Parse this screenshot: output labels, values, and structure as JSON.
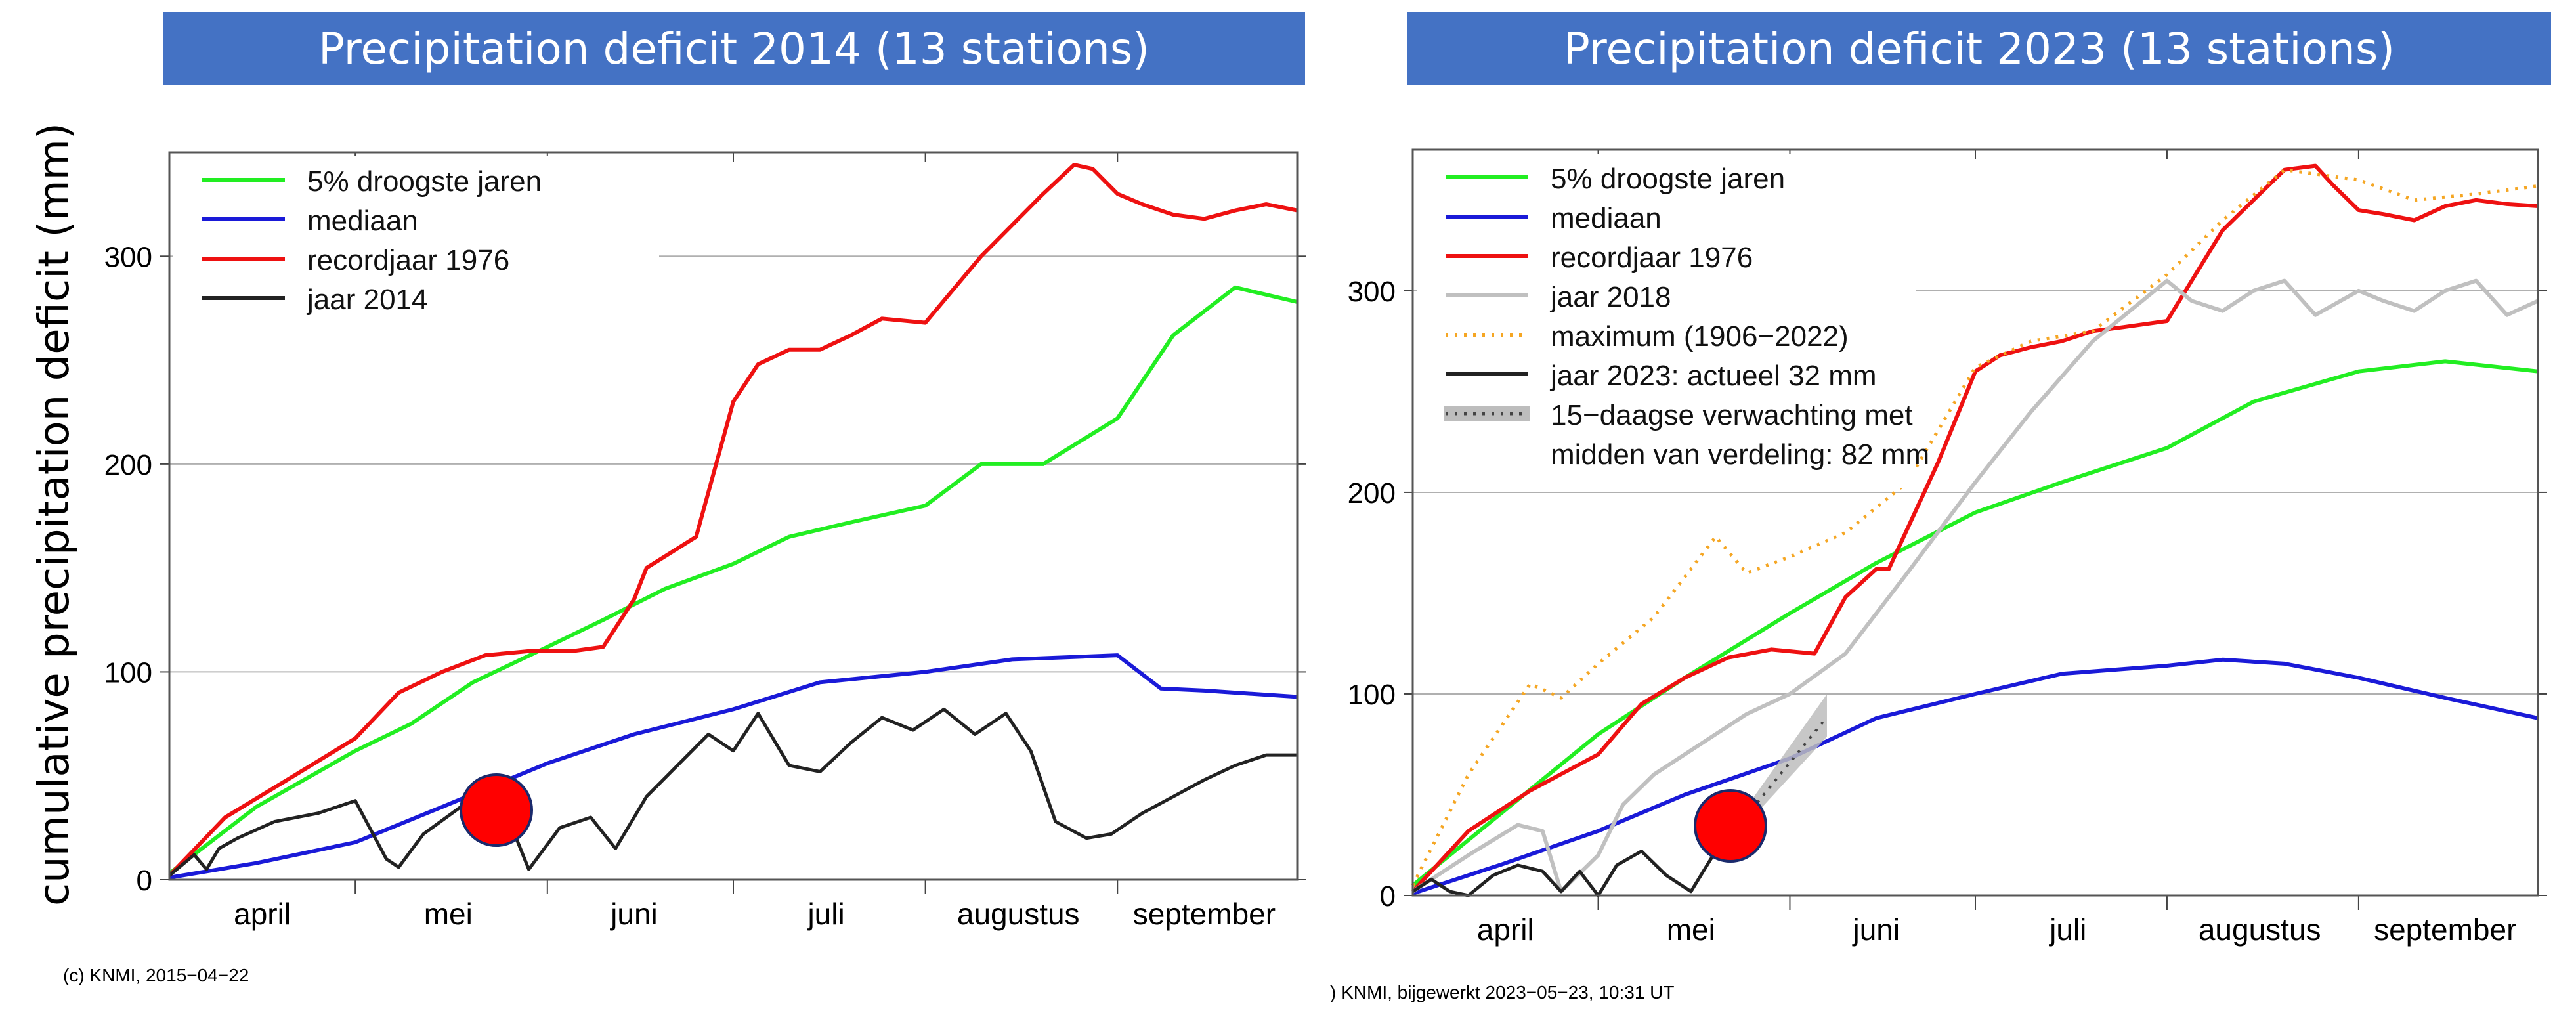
{
  "banners": {
    "left": "Precipitation deficit 2014 (13 stations)",
    "right": "Precipitation deficit 2023 (13 stations)"
  },
  "ylabel": "cumulative precipitation deficit (mm)",
  "credits": {
    "left": "(c) KNMI, 2015−04−22",
    "right": ") KNMI, bijgewerkt 2023−05−23, 10:31 UT"
  },
  "colors": {
    "banner": "#4472c4",
    "green": "#22ee22",
    "blue": "#1a1ad8",
    "red": "#ee1111",
    "black": "#222222",
    "grey": "#c0c0c0",
    "orange": "#f5a623",
    "marker": "#ff0000"
  },
  "chart_data": [
    {
      "type": "line",
      "title": "Precipitation deficit 2014 (13 stations)",
      "ylabel": "cumulative precipitation deficit (mm)",
      "ylim": [
        0,
        350
      ],
      "yticks": [
        0,
        100,
        200,
        300
      ],
      "xlim": [
        "2014-04-01",
        "2014-09-30"
      ],
      "month_labels": [
        "april",
        "mei",
        "juni",
        "juli",
        "augustus",
        "september"
      ],
      "grid": "horizontal",
      "legend_position": "top-left",
      "series": [
        {
          "name": "5% droogste jaren",
          "color": "green",
          "x": [
            "04-01",
            "04-15",
            "05-01",
            "05-10",
            "05-20",
            "06-01",
            "06-10",
            "06-20",
            "07-01",
            "07-10",
            "07-20",
            "08-01",
            "08-10",
            "08-20",
            "09-01",
            "09-10",
            "09-20",
            "09-30"
          ],
          "y": [
            3,
            35,
            62,
            75,
            95,
            112,
            125,
            140,
            152,
            165,
            172,
            180,
            200,
            200,
            222,
            262,
            285,
            278
          ]
        },
        {
          "name": "mediaan",
          "color": "blue",
          "x": [
            "04-01",
            "04-15",
            "05-01",
            "05-15",
            "06-01",
            "06-15",
            "07-01",
            "07-15",
            "08-01",
            "08-15",
            "09-01",
            "09-08",
            "09-15",
            "09-30"
          ],
          "y": [
            1,
            8,
            18,
            35,
            56,
            70,
            82,
            95,
            100,
            106,
            108,
            92,
            91,
            88
          ]
        },
        {
          "name": "recordjaar 1976",
          "color": "red",
          "x": [
            "04-01",
            "04-10",
            "04-20",
            "05-01",
            "05-08",
            "05-15",
            "05-22",
            "05-29",
            "06-05",
            "06-10",
            "06-15",
            "06-17",
            "06-25",
            "07-01",
            "07-05",
            "07-10",
            "07-15",
            "07-20",
            "07-25",
            "08-01",
            "08-10",
            "08-20",
            "08-25",
            "08-28",
            "09-01",
            "09-05",
            "09-10",
            "09-15",
            "09-20",
            "09-25",
            "09-30"
          ],
          "y": [
            2,
            30,
            48,
            68,
            90,
            100,
            108,
            110,
            110,
            112,
            135,
            150,
            165,
            230,
            248,
            255,
            255,
            262,
            270,
            268,
            300,
            330,
            344,
            342,
            330,
            325,
            320,
            318,
            322,
            325,
            322
          ]
        },
        {
          "name": "jaar 2014",
          "color": "black",
          "x": [
            "04-01",
            "04-05",
            "04-07",
            "04-09",
            "04-12",
            "04-18",
            "04-25",
            "05-01",
            "05-06",
            "05-08",
            "05-12",
            "05-18",
            "05-24",
            "05-29",
            "06-03",
            "06-08",
            "06-12",
            "06-17",
            "06-22",
            "06-27",
            "07-01",
            "07-05",
            "07-10",
            "07-15",
            "07-20",
            "07-25",
            "07-30",
            "08-04",
            "08-09",
            "08-14",
            "08-18",
            "08-22",
            "08-27",
            "08-31",
            "09-05",
            "09-10",
            "09-15",
            "09-20",
            "09-25",
            "09-30"
          ],
          "y": [
            2,
            12,
            5,
            15,
            20,
            28,
            32,
            38,
            10,
            6,
            22,
            35,
            42,
            5,
            25,
            30,
            15,
            40,
            55,
            70,
            62,
            80,
            55,
            52,
            66,
            78,
            72,
            82,
            70,
            80,
            62,
            28,
            20,
            22,
            32,
            40,
            48,
            55,
            60,
            60
          ]
        }
      ]
    },
    {
      "type": "line",
      "title": "Precipitation deficit 2023 (13 stations)",
      "ylim": [
        0,
        370
      ],
      "yticks": [
        0,
        100,
        200,
        300
      ],
      "xlim": [
        "2023-04-01",
        "2023-09-30"
      ],
      "month_labels": [
        "april",
        "mei",
        "juni",
        "juli",
        "augustus",
        "september"
      ],
      "grid": "horizontal",
      "legend_position": "top-left",
      "series": [
        {
          "name": "5% droogste jaren",
          "color": "green",
          "x": [
            "04-01",
            "04-15",
            "05-01",
            "05-15",
            "06-01",
            "06-15",
            "07-01",
            "07-15",
            "08-01",
            "08-15",
            "09-01",
            "09-15",
            "09-30"
          ],
          "y": [
            5,
            40,
            80,
            108,
            140,
            165,
            190,
            205,
            222,
            245,
            260,
            265,
            260
          ]
        },
        {
          "name": "mediaan",
          "color": "blue",
          "x": [
            "04-01",
            "04-15",
            "05-01",
            "05-15",
            "06-01",
            "06-15",
            "07-01",
            "07-15",
            "08-01",
            "08-10",
            "08-20",
            "09-01",
            "09-15",
            "09-30"
          ],
          "y": [
            1,
            15,
            32,
            50,
            68,
            88,
            100,
            110,
            114,
            117,
            115,
            108,
            98,
            88
          ]
        },
        {
          "name": "recordjaar 1976",
          "color": "red",
          "x": [
            "04-01",
            "04-10",
            "04-20",
            "05-01",
            "05-08",
            "05-15",
            "05-22",
            "05-29",
            "06-05",
            "06-10",
            "06-15",
            "06-17",
            "06-25",
            "07-01",
            "07-05",
            "07-10",
            "07-15",
            "07-20",
            "07-25",
            "08-01",
            "08-10",
            "08-20",
            "08-25",
            "08-28",
            "09-01",
            "09-05",
            "09-10",
            "09-15",
            "09-20",
            "09-25",
            "09-30"
          ],
          "y": [
            2,
            32,
            52,
            70,
            95,
            108,
            118,
            122,
            120,
            148,
            162,
            162,
            215,
            260,
            268,
            272,
            275,
            280,
            282,
            285,
            330,
            360,
            362,
            352,
            340,
            338,
            335,
            342,
            345,
            343,
            342
          ]
        },
        {
          "name": "jaar 2018",
          "color": "grey",
          "x": [
            "04-01",
            "04-10",
            "04-18",
            "04-22",
            "04-25",
            "05-01",
            "05-05",
            "05-10",
            "05-15",
            "05-20",
            "05-25",
            "06-01",
            "06-10",
            "06-20",
            "07-01",
            "07-10",
            "07-20",
            "08-01",
            "08-05",
            "08-10",
            "08-15",
            "08-20",
            "08-25",
            "09-01",
            "09-05",
            "09-10",
            "09-15",
            "09-20",
            "09-25",
            "09-30"
          ],
          "y": [
            2,
            20,
            35,
            32,
            2,
            20,
            45,
            60,
            70,
            80,
            90,
            100,
            120,
            160,
            205,
            240,
            275,
            305,
            295,
            290,
            300,
            305,
            288,
            300,
            295,
            290,
            300,
            305,
            288,
            295
          ]
        },
        {
          "name": "maximum (1906−2022)",
          "color": "orange",
          "dashed": true,
          "x": [
            "04-01",
            "04-10",
            "04-20",
            "04-25",
            "05-01",
            "05-10",
            "05-20",
            "05-25",
            "06-01",
            "06-10",
            "06-20",
            "07-01",
            "07-10",
            "07-20",
            "08-01",
            "08-10",
            "08-20",
            "09-01",
            "09-10",
            "09-20",
            "09-30"
          ],
          "y": [
            5,
            60,
            105,
            98,
            115,
            138,
            178,
            160,
            168,
            180,
            205,
            262,
            275,
            280,
            308,
            335,
            360,
            355,
            345,
            348,
            352
          ]
        },
        {
          "name": "jaar 2023: actueel 32 mm",
          "color": "black",
          "x": [
            "04-01",
            "04-04",
            "04-07",
            "04-10",
            "04-14",
            "04-18",
            "04-22",
            "04-25",
            "04-28",
            "05-01",
            "05-04",
            "05-08",
            "05-12",
            "05-16",
            "05-20",
            "05-23"
          ],
          "y": [
            2,
            8,
            2,
            0,
            10,
            15,
            12,
            2,
            12,
            0,
            15,
            22,
            10,
            2,
            22,
            32
          ]
        },
        {
          "name": "15−daagse verwachting met midden van verdeling: 82 mm",
          "color": "grey",
          "band": true,
          "x": [
            "05-23",
            "06-07"
          ],
          "y": [
            32,
            82
          ]
        }
      ]
    }
  ],
  "legend_labels_left": [
    "5% droogste jaren",
    "mediaan",
    "recordjaar 1976",
    "jaar 2014"
  ],
  "legend_labels_right": [
    "5% droogste jaren",
    "mediaan",
    "recordjaar 1976",
    "jaar 2018",
    "maximum (1906−2022)",
    "jaar 2023: actueel 32 mm",
    "15−daagse verwachting met",
    "midden van verdeling: 82 mm"
  ]
}
